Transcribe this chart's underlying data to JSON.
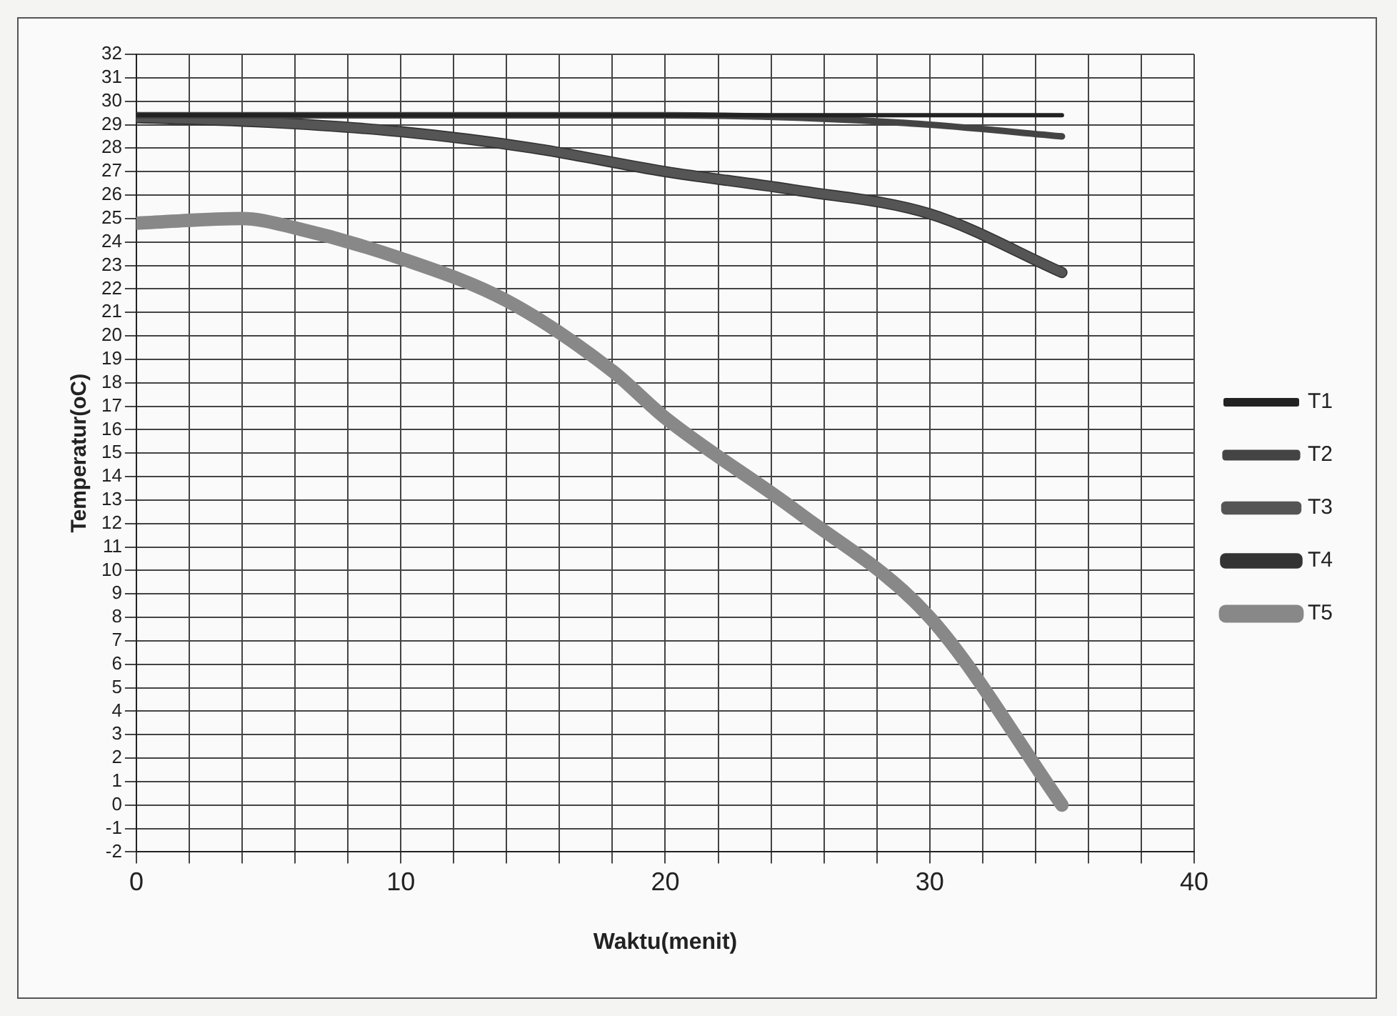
{
  "chart_data": {
    "type": "line",
    "xlabel": "Waktu(menit)",
    "ylabel": "Temperatur(oC)",
    "x": [
      0,
      5,
      10,
      15,
      20,
      25,
      30,
      35
    ],
    "series": [
      {
        "name": "T1",
        "color": "#222222",
        "values": [
          29.4,
          29.4,
          29.4,
          29.4,
          29.4,
          29.4,
          29.4,
          29.4
        ]
      },
      {
        "name": "T2",
        "color": "#444444",
        "values": [
          29.4,
          29.4,
          29.4,
          29.4,
          29.4,
          29.3,
          29,
          28.5
        ]
      },
      {
        "name": "T3",
        "color": "#555555",
        "values": [
          29.3,
          29.1,
          28.7,
          28,
          27,
          26.2,
          25.2,
          22.7
        ]
      },
      {
        "name": "T4",
        "color": "#333333",
        "values": [
          29.3,
          29.1,
          28.7,
          28,
          27,
          26.2,
          25.2,
          22.7
        ]
      },
      {
        "name": "T5",
        "color": "#888888",
        "x": [
          0,
          4,
          6,
          10,
          14,
          18,
          20,
          25,
          30,
          35
        ],
        "values": [
          24.8,
          25,
          24.6,
          23.3,
          21.5,
          18.5,
          16.5,
          12.5,
          8,
          0
        ]
      }
    ],
    "xlim": [
      0,
      40
    ],
    "ylim": [
      -2,
      32
    ],
    "xticks": [
      0,
      {
        "value": 2,
        "label": null
      },
      {
        "value": 4,
        "label": null
      },
      {
        "value": 6,
        "label": null
      },
      {
        "value": 8,
        "label": null
      },
      10,
      {
        "value": 12,
        "label": null
      },
      {
        "value": 14,
        "label": null
      },
      {
        "value": 16,
        "label": null
      },
      {
        "value": 18,
        "label": null
      },
      20,
      {
        "value": 22,
        "label": null
      },
      {
        "value": 24,
        "label": null
      },
      {
        "value": 26,
        "label": null
      },
      {
        "value": 28,
        "label": null
      },
      30,
      {
        "value": 32,
        "label": null
      },
      {
        "value": 34,
        "label": null
      },
      {
        "value": 36,
        "label": null
      },
      {
        "value": 38,
        "label": null
      },
      40
    ],
    "yticks": [
      -2,
      -1,
      0,
      1,
      2,
      3,
      4,
      5,
      6,
      7,
      8,
      9,
      10,
      11,
      12,
      13,
      14,
      15,
      16,
      17,
      18,
      19,
      20,
      21,
      22,
      23,
      24,
      25,
      26,
      27,
      28,
      29,
      30,
      31,
      32
    ],
    "grid": true,
    "legend": "right",
    "marker": "none",
    "line_style": "solid"
  }
}
